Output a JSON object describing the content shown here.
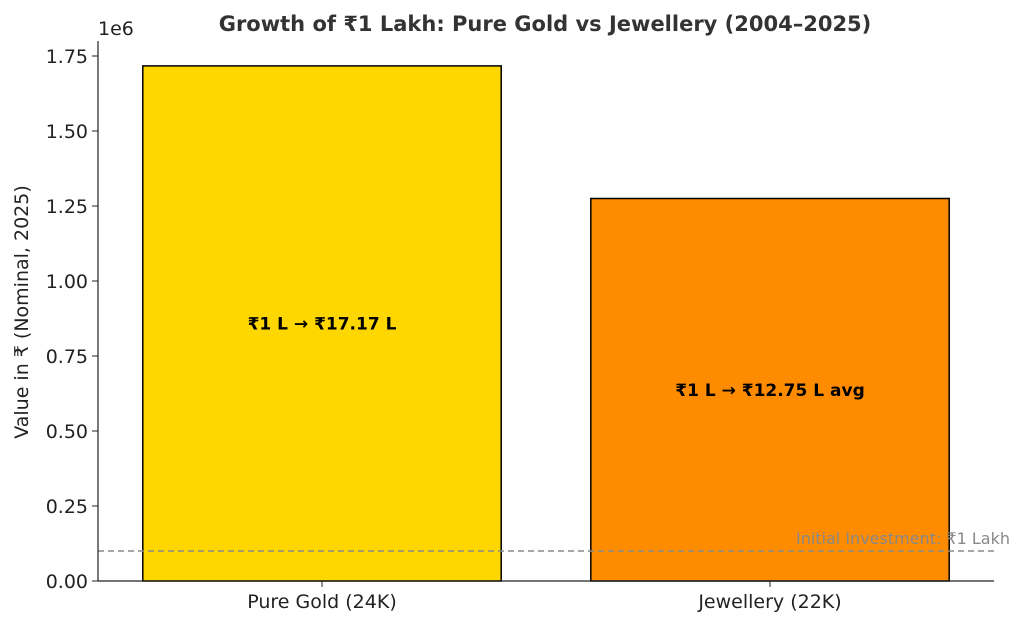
{
  "chart_data": {
    "type": "bar",
    "title": "Growth of ₹1 Lakh: Pure Gold vs Jewellery (2004–2025)",
    "xlabel": "",
    "ylabel": "Value in ₹ (Nominal, 2025)",
    "y_offset_text": "1e6",
    "ylim": [
      0,
      1.8
    ],
    "yticks": [
      0,
      0.25,
      0.5,
      0.75,
      1.0,
      1.25,
      1.5,
      1.75
    ],
    "ytick_labels": [
      "0.00",
      "0.25",
      "0.50",
      "0.75",
      "1.00",
      "1.25",
      "1.50",
      "1.75"
    ],
    "categories": [
      "Pure Gold (24K)",
      "Jewellery (22K)"
    ],
    "values": [
      1.717,
      1.275
    ],
    "colors": [
      "#FFD700",
      "#FF8C00"
    ],
    "bar_labels": [
      "₹1 L → ₹17.17 L",
      "₹1 L → ₹12.75 L avg"
    ],
    "reference_line": {
      "value": 0.1,
      "label": "Initial Investment: ₹1 Lakh",
      "color": "#888888",
      "style": "dashed"
    },
    "grid": false
  }
}
